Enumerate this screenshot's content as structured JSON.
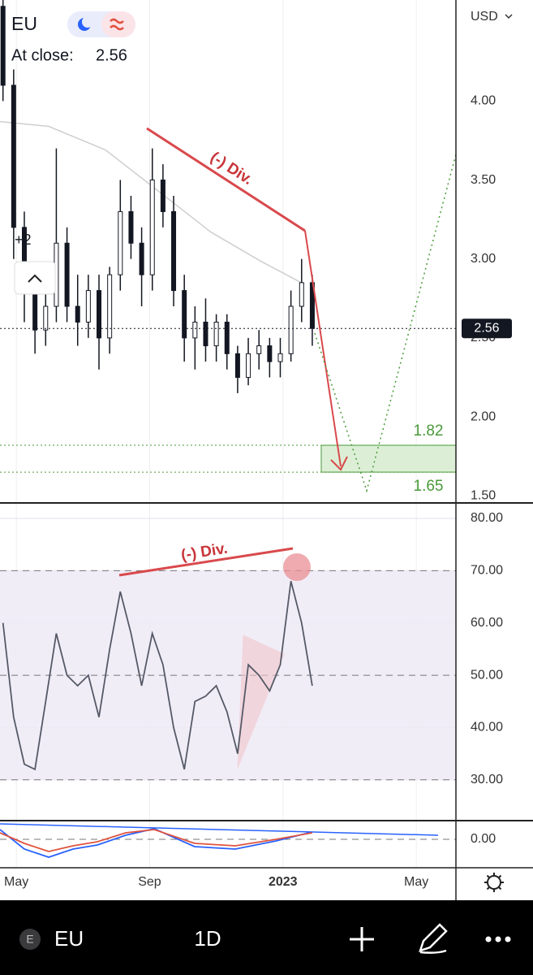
{
  "ui": {
    "symbol": "EU",
    "close_label": "At close:",
    "currency": "USD",
    "badge": "+2",
    "bottom_bar": {
      "icon_letter": "E",
      "symbol": "EU",
      "interval": "1D"
    }
  },
  "chart_data": [
    {
      "type": "candlestick",
      "xlim": [
        -0.49,
        13.19
      ],
      "xticks": [
        {
          "value": 0,
          "label": "May"
        },
        {
          "value": 4,
          "label": "Sep"
        },
        {
          "value": 8,
          "label": "2023"
        },
        {
          "value": 12,
          "label": "May"
        }
      ],
      "x": [
        -0.4,
        -0.08,
        0.24,
        0.56,
        0.88,
        1.2,
        1.52,
        1.84,
        2.16,
        2.48,
        2.8,
        3.12,
        3.44,
        3.76,
        4.08,
        4.4,
        4.72,
        5.04,
        5.36,
        5.68,
        6.0,
        6.32,
        6.64,
        6.96,
        7.28,
        7.6,
        7.92,
        8.24,
        8.56,
        8.88
      ],
      "open": [
        4.6,
        4.1,
        3.2,
        2.8,
        2.55,
        2.7,
        3.1,
        2.7,
        2.6,
        2.8,
        2.5,
        2.9,
        3.3,
        3.1,
        2.9,
        3.5,
        3.3,
        2.8,
        2.5,
        2.6,
        2.45,
        2.6,
        2.4,
        2.25,
        2.4,
        2.45,
        2.35,
        2.4,
        2.7,
        2.85
      ],
      "high": [
        4.64,
        4.2,
        3.3,
        2.9,
        2.8,
        3.7,
        3.2,
        2.9,
        2.9,
        2.9,
        2.95,
        3.5,
        3.4,
        3.2,
        3.7,
        3.6,
        3.4,
        2.9,
        2.7,
        2.75,
        2.65,
        2.65,
        2.45,
        2.5,
        2.55,
        2.5,
        2.5,
        2.8,
        3.0,
        2.9
      ],
      "low": [
        4.0,
        3.0,
        2.6,
        2.4,
        2.45,
        2.6,
        2.6,
        2.45,
        2.5,
        2.3,
        2.4,
        2.8,
        3.0,
        2.7,
        2.8,
        3.2,
        2.7,
        2.35,
        2.3,
        2.35,
        2.35,
        2.3,
        2.15,
        2.2,
        2.3,
        2.25,
        2.25,
        2.35,
        2.6,
        2.45
      ],
      "close": [
        4.1,
        3.2,
        2.8,
        2.55,
        2.7,
        3.1,
        2.7,
        2.6,
        2.8,
        2.5,
        2.9,
        3.3,
        3.1,
        2.9,
        3.5,
        3.3,
        2.8,
        2.5,
        2.6,
        2.45,
        2.6,
        2.4,
        2.25,
        2.4,
        2.45,
        2.35,
        2.4,
        2.7,
        2.85,
        2.56
      ],
      "color": "#131722",
      "moving_average": {
        "color": "#cfcfcf",
        "x": [
          -0.49,
          0.97,
          2.68,
          4.38,
          5.84,
          7.3,
          8.64
        ],
        "values": [
          3.87,
          3.84,
          3.69,
          3.41,
          3.17,
          2.99,
          2.84
        ]
      },
      "last_close": 2.56,
      "levels": [
        1.82,
        1.65
      ],
      "level_color": "#4a9a3a",
      "annotation": "(-) Div.",
      "ylim": [
        1.46,
        4.64
      ],
      "yticks": [
        {
          "value": 1.5,
          "label": "1.50"
        },
        {
          "value": 2,
          "label": "2.00"
        },
        {
          "value": 2.5,
          "label": "2.50"
        },
        {
          "value": 3,
          "label": "3.00"
        },
        {
          "value": 3.5,
          "label": "3.50"
        },
        {
          "value": 4,
          "label": "4.00"
        }
      ]
    },
    {
      "type": "line",
      "annotation": "(-) Div.",
      "x": [
        -0.4,
        -0.08,
        0.24,
        0.56,
        0.88,
        1.2,
        1.52,
        1.84,
        2.16,
        2.48,
        2.8,
        3.12,
        3.44,
        3.76,
        4.08,
        4.4,
        4.72,
        5.04,
        5.36,
        5.68,
        6.0,
        6.32,
        6.64,
        6.96,
        7.28,
        7.6,
        7.92,
        8.24,
        8.56,
        8.88
      ],
      "series": [
        {
          "color": "#555a66",
          "values": [
            60,
            42,
            33,
            32,
            45,
            58,
            50,
            48,
            50,
            42,
            55,
            66,
            58,
            48,
            58,
            52,
            40,
            32,
            45,
            46,
            48,
            43,
            35,
            52,
            50,
            47,
            52,
            68,
            60,
            48
          ]
        }
      ],
      "band": [
        30,
        70
      ],
      "band_color": "#efeaf6",
      "levels": [
        70,
        50,
        30
      ],
      "ylim": [
        22.2,
        82.8
      ],
      "yticks": [
        {
          "value": 30,
          "label": "30.00"
        },
        {
          "value": 40,
          "label": "40.00"
        },
        {
          "value": 50,
          "label": "50.00"
        },
        {
          "value": 60,
          "label": "60.00"
        },
        {
          "value": 70,
          "label": "70.00"
        },
        {
          "value": 80,
          "label": "80.00"
        }
      ]
    },
    {
      "type": "line",
      "x": [
        -0.49,
        0.24,
        0.97,
        1.7,
        2.43,
        3.28,
        4.14,
        5.35,
        6.57,
        7.79,
        8.88
      ],
      "series": [
        {
          "color": "#2962ff",
          "values": [
            0.12,
            -0.12,
            -0.22,
            -0.12,
            -0.07,
            0.05,
            0.13,
            -0.09,
            -0.12,
            -0.02,
            0.09
          ]
        },
        {
          "color": "#e0533f",
          "values": [
            0.08,
            -0.05,
            -0.15,
            -0.08,
            -0.03,
            0.08,
            0.12,
            -0.05,
            -0.08,
            0.0,
            0.08
          ]
        }
      ],
      "levels": [
        0
      ],
      "ylim": [
        -0.35,
        0.21
      ],
      "yticks": [
        {
          "value": 0,
          "label": "0.00"
        }
      ]
    }
  ]
}
